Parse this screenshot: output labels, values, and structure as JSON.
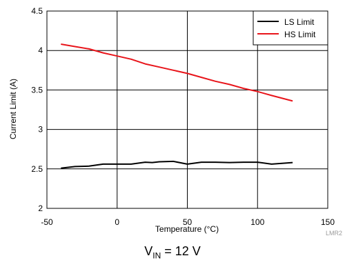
{
  "chart_data": {
    "type": "line",
    "xlabel": "Temperature (°C)",
    "ylabel": "Current Limit (A)",
    "xlim": [
      -50,
      150
    ],
    "ylim": [
      2,
      4.5
    ],
    "xticks": [
      -50,
      0,
      50,
      100,
      150
    ],
    "yticks": [
      2,
      2.5,
      3,
      3.5,
      4,
      4.5
    ],
    "grid": true,
    "legend_position": "top-right",
    "series": [
      {
        "name": "LS Limit",
        "color": "#000000",
        "x": [
          -40,
          -30,
          -20,
          -10,
          0,
          10,
          20,
          25,
          30,
          40,
          50,
          60,
          70,
          80,
          90,
          100,
          110,
          125
        ],
        "y": [
          2.51,
          2.53,
          2.535,
          2.56,
          2.56,
          2.56,
          2.585,
          2.58,
          2.59,
          2.595,
          2.56,
          2.585,
          2.585,
          2.58,
          2.585,
          2.585,
          2.56,
          2.58
        ]
      },
      {
        "name": "HS Limit",
        "color": "#e8141a",
        "x": [
          -40,
          -30,
          -20,
          -10,
          0,
          10,
          20,
          30,
          40,
          50,
          60,
          70,
          80,
          90,
          100,
          110,
          125
        ],
        "y": [
          4.08,
          4.05,
          4.02,
          3.97,
          3.93,
          3.89,
          3.83,
          3.79,
          3.75,
          3.71,
          3.66,
          3.61,
          3.57,
          3.52,
          3.48,
          3.43,
          3.36
        ]
      }
    ],
    "watermark": "LMR2",
    "caption": {
      "main": "V",
      "sub": "IN",
      "rest": " = 12 V"
    }
  }
}
